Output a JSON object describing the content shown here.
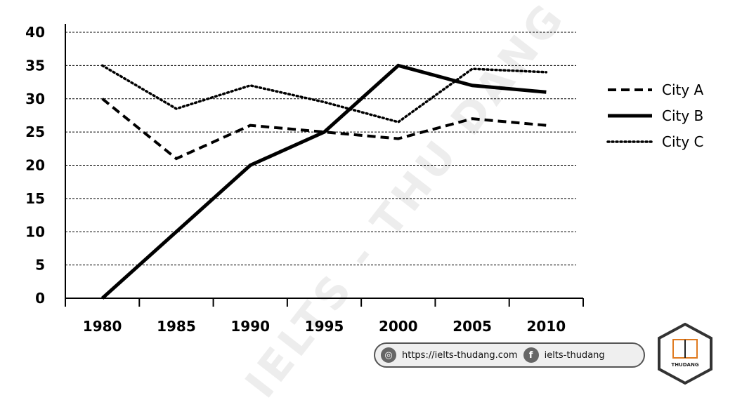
{
  "watermark": "IELTS - THU DANG",
  "footer": {
    "website_icon": "dribbble-icon",
    "website": "https://ielts-thudang.com",
    "social_icon": "facebook-icon",
    "social": "ielts-thudang"
  },
  "logo": {
    "text": "THUDANG",
    "icon": "book-icon"
  },
  "chart_data": {
    "type": "line",
    "title": "",
    "xlabel": "",
    "ylabel": "",
    "x": [
      1980,
      1985,
      1990,
      1995,
      2000,
      2005,
      2010
    ],
    "ylim": [
      0,
      40
    ],
    "yticks": [
      0,
      5,
      10,
      15,
      20,
      25,
      30,
      35,
      40
    ],
    "grid": true,
    "legend_position": "right",
    "series": [
      {
        "name": "City A",
        "style": "dashed",
        "color": "#000000",
        "points": [
          [
            1980,
            30
          ],
          [
            1985,
            21
          ],
          [
            1990,
            26
          ],
          [
            1995,
            25
          ],
          [
            2000,
            24
          ],
          [
            2005,
            27
          ],
          [
            2010,
            26
          ]
        ]
      },
      {
        "name": "City B",
        "style": "solid",
        "color": "#000000",
        "points": [
          [
            1980,
            0
          ],
          [
            1985,
            10
          ],
          [
            1990,
            20
          ],
          [
            1995,
            25
          ],
          [
            2000,
            35
          ],
          [
            2005,
            32
          ],
          [
            2010,
            31
          ]
        ]
      },
      {
        "name": "City C",
        "style": "dotted",
        "color": "#000000",
        "points": [
          [
            1980,
            35
          ],
          [
            1985,
            28.5
          ],
          [
            1990,
            32
          ],
          [
            1995,
            29.5
          ],
          [
            2000,
            26.5
          ],
          [
            2005,
            34.5
          ],
          [
            2010,
            34
          ]
        ]
      }
    ]
  }
}
